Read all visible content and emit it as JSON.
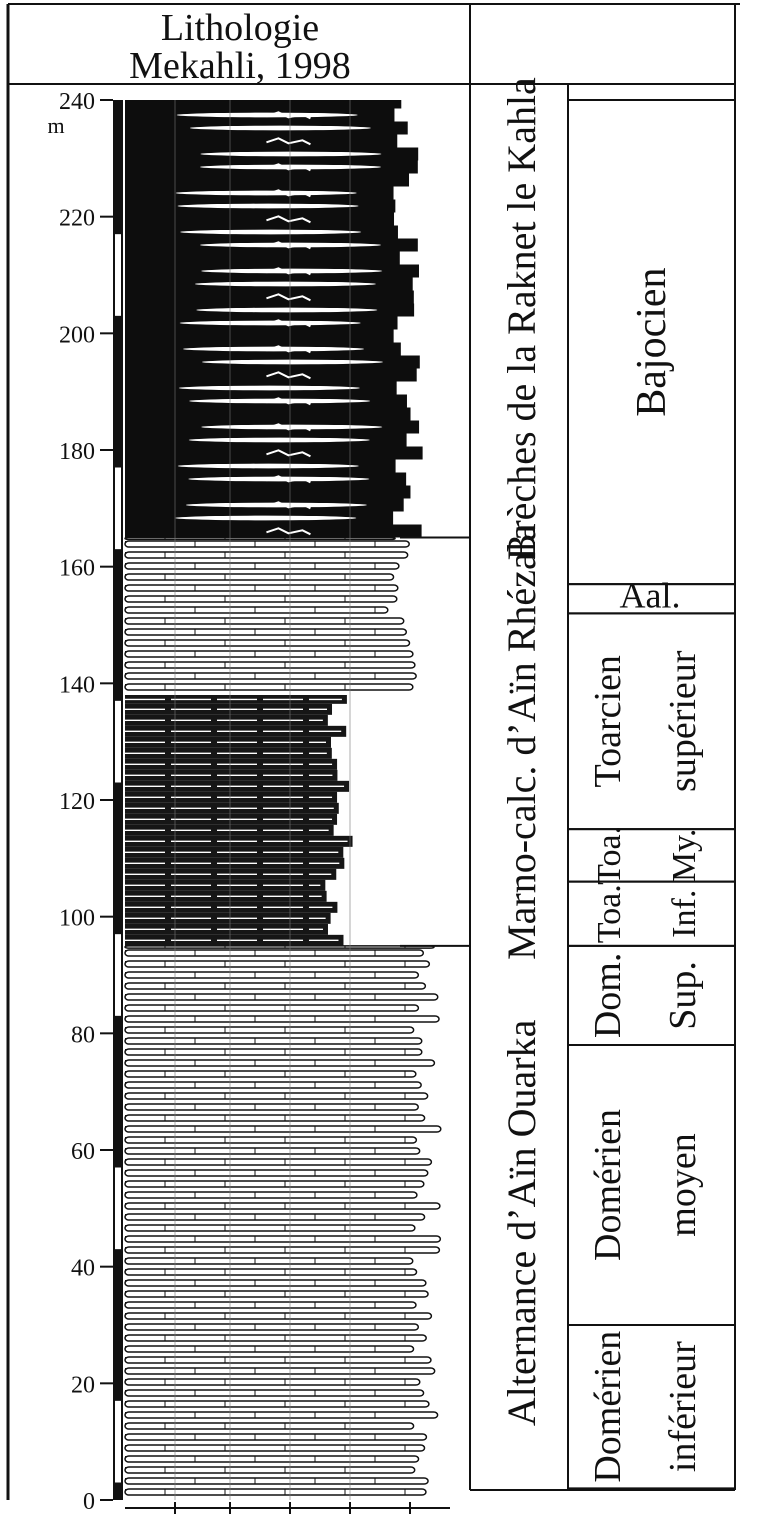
{
  "header": {
    "title_line1": "Lithologie",
    "title_line2": "Mekahli, 1998"
  },
  "scale": {
    "unit": "m",
    "min": 0,
    "max": 240,
    "ticks": [
      {
        "value": 0,
        "label": "0"
      },
      {
        "value": 20,
        "label": "20"
      },
      {
        "value": 40,
        "label": "40"
      },
      {
        "value": 60,
        "label": "60"
      },
      {
        "value": 80,
        "label": "80"
      },
      {
        "value": 100,
        "label": "100"
      },
      {
        "value": 120,
        "label": "120"
      },
      {
        "value": 140,
        "label": "140"
      },
      {
        "value": 160,
        "label": "160"
      },
      {
        "value": 180,
        "label": "180"
      },
      {
        "value": 200,
        "label": "200"
      },
      {
        "value": 220,
        "label": "220"
      },
      {
        "value": 240,
        "label": "240"
      }
    ]
  },
  "formations": [
    {
      "label": "Brèches de la Raknet le Kahla",
      "from": 165,
      "to": 240
    },
    {
      "label": "Marno-calc. d’Aïn Rhézala",
      "from": 95,
      "to": 165
    },
    {
      "label": "Alternance d’Aïn Ouarka",
      "from": 0,
      "to": 95
    }
  ],
  "stages": [
    {
      "lines": [
        "Bajocien"
      ],
      "from": 157,
      "to": 240
    },
    {
      "lines": [
        "Aal."
      ],
      "from": 152,
      "to": 157
    },
    {
      "lines": [
        "Toarcien",
        "supérieur"
      ],
      "from": 115,
      "to": 152
    },
    {
      "lines": [
        "Toa.",
        "My."
      ],
      "from": 106,
      "to": 115
    },
    {
      "lines": [
        "Toa.",
        "Inf."
      ],
      "from": 95,
      "to": 106
    },
    {
      "lines": [
        "Dom.",
        "Sup."
      ],
      "from": 78,
      "to": 95
    },
    {
      "lines": [
        "Domérien",
        "moyen"
      ],
      "from": 30,
      "to": 78
    },
    {
      "lines": [
        "Domérien",
        "inférieur"
      ],
      "from": 2,
      "to": 30
    }
  ],
  "lithology_intervals": [
    {
      "from": 0,
      "to": 95,
      "type": "limestone-marl-alternation",
      "extent": 0.85
    },
    {
      "from": 95,
      "to": 138,
      "type": "marl-dominant",
      "extent": 0.62
    },
    {
      "from": 138,
      "to": 165,
      "type": "marly-limestone",
      "extent": 0.78
    },
    {
      "from": 165,
      "to": 240,
      "type": "breccia",
      "extent": 0.82
    }
  ]
}
